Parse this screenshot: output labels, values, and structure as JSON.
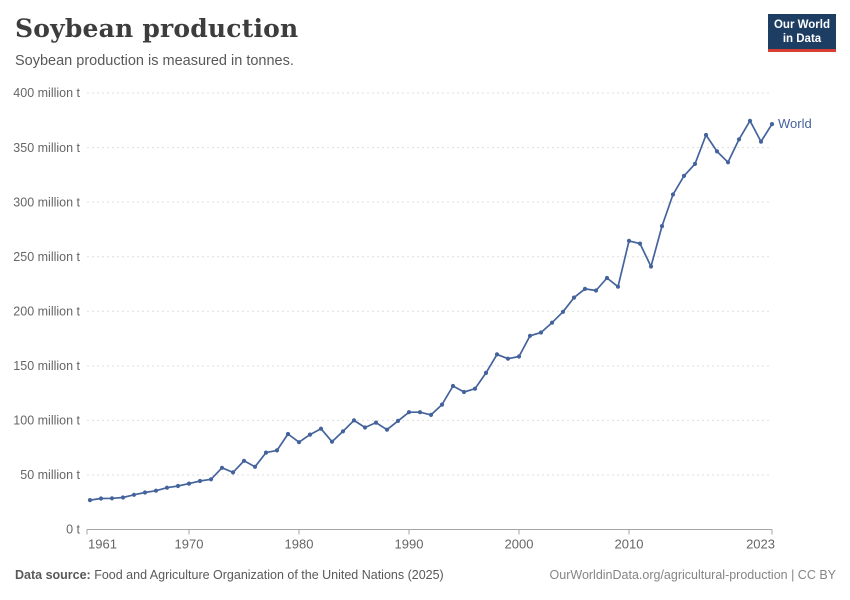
{
  "header": {
    "title": "Soybean production",
    "subtitle": "Soybean production is measured in tonnes."
  },
  "logo": {
    "line1": "Our World",
    "line2": "in Data",
    "bg_color": "#1d3d63",
    "accent_color": "#d93d32"
  },
  "footer": {
    "source_label": "Data source:",
    "source_text": " Food and Agriculture Organization of the United Nations (2025)",
    "link_text": "OurWorldinData.org/agricultural-production | CC BY"
  },
  "chart_data": {
    "type": "line",
    "title": "Soybean production",
    "unit": "tonnes",
    "values_unit": "million tonnes",
    "grid": "dashed-horizontal",
    "legend_position": "end-of-line-label",
    "xlim": [
      1961,
      2023
    ],
    "ylim": [
      0,
      400
    ],
    "x_ticks": [
      1961,
      1970,
      1980,
      1990,
      2000,
      2010,
      2023
    ],
    "y_ticks": [
      {
        "value": 0,
        "label": "0 t"
      },
      {
        "value": 50,
        "label": "50 million t"
      },
      {
        "value": 100,
        "label": "100 million t"
      },
      {
        "value": 150,
        "label": "150 million t"
      },
      {
        "value": 200,
        "label": "200 million t"
      },
      {
        "value": 250,
        "label": "250 million t"
      },
      {
        "value": 300,
        "label": "300 million t"
      },
      {
        "value": 350,
        "label": "350 million t"
      },
      {
        "value": 400,
        "label": "400 million t"
      }
    ],
    "series": [
      {
        "name": "World",
        "color": "#44639c",
        "years": [
          1961,
          1962,
          1963,
          1964,
          1965,
          1966,
          1967,
          1968,
          1969,
          1970,
          1971,
          1972,
          1973,
          1974,
          1975,
          1976,
          1977,
          1978,
          1979,
          1980,
          1981,
          1982,
          1983,
          1984,
          1985,
          1986,
          1987,
          1988,
          1989,
          1990,
          1991,
          1992,
          1993,
          1994,
          1995,
          1996,
          1997,
          1998,
          1999,
          2000,
          2001,
          2002,
          2003,
          2004,
          2005,
          2006,
          2007,
          2008,
          2009,
          2010,
          2011,
          2012,
          2013,
          2014,
          2015,
          2016,
          2017,
          2018,
          2019,
          2020,
          2021,
          2022,
          2023
        ],
        "values": [
          26.9,
          28.4,
          28.6,
          29.3,
          31.8,
          33.9,
          35.6,
          38.3,
          39.9,
          42.1,
          44.4,
          46.0,
          56.5,
          52.3,
          63.0,
          57.5,
          70.5,
          72.5,
          87.5,
          80.0,
          87.0,
          92.4,
          80.5,
          90.0,
          100.0,
          93.5,
          98.0,
          91.5,
          99.5,
          107.5,
          107.5,
          105.0,
          114.5,
          131.5,
          126.0,
          129.0,
          143.5,
          160.5,
          156.5,
          158.5,
          177.5,
          180.5,
          189.5,
          199.5,
          212.5,
          220.5,
          219.0,
          230.5,
          222.5,
          264.5,
          262.0,
          241.0,
          278.0,
          307.0,
          324.0,
          335.0,
          361.5,
          346.5,
          336.5,
          357.5,
          374.5,
          355.5,
          371.5
        ]
      }
    ]
  }
}
